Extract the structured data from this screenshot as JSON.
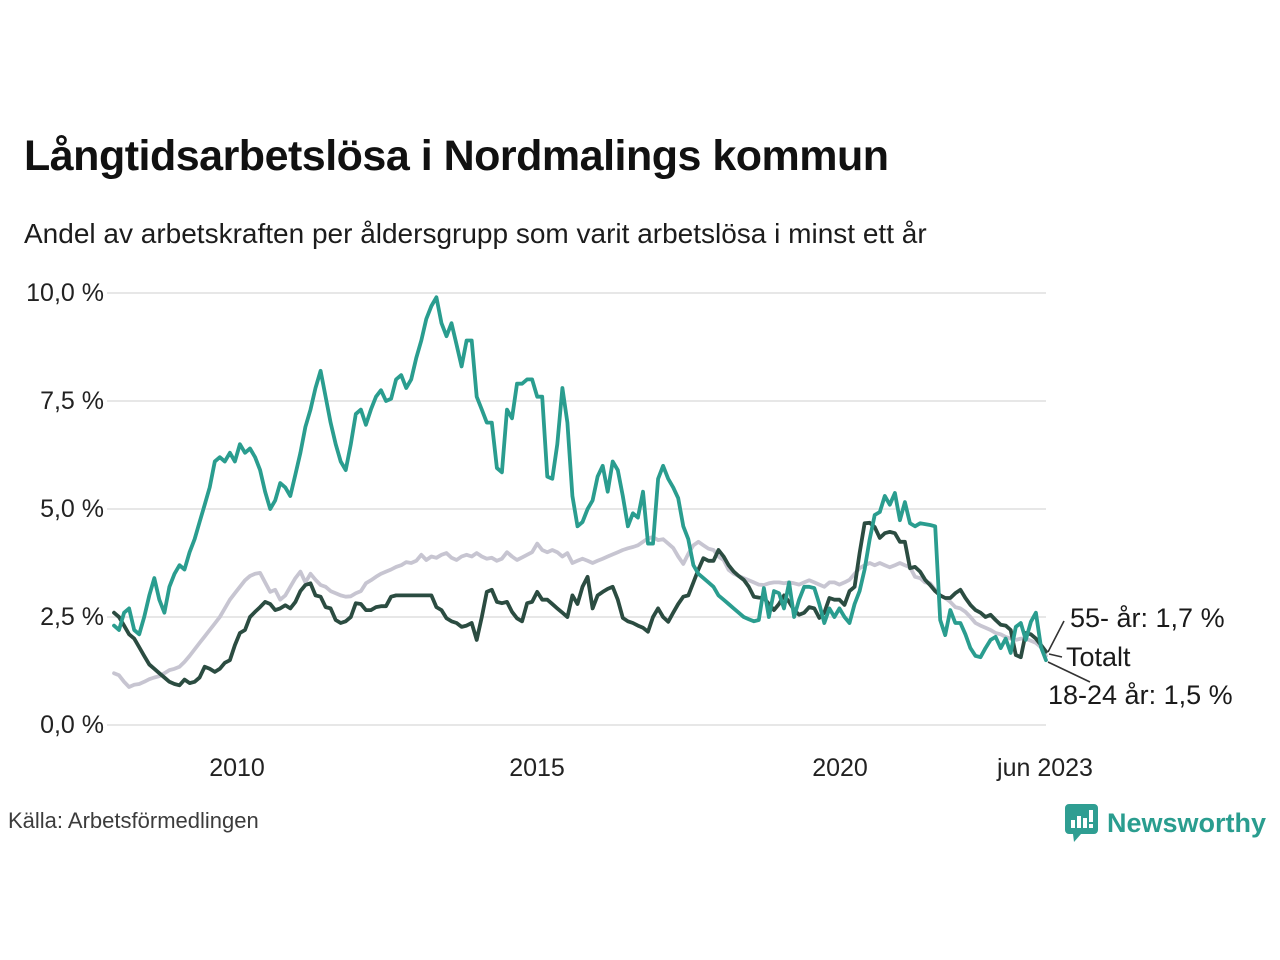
{
  "header": {
    "title": "Långtidsarbetslösa i Nordmalings kommun",
    "subtitle": "Andel av arbetskraften per åldersgrupp som varit arbetslösa i minst ett år"
  },
  "footer": {
    "source": "Källa: Arbetsförmedlingen",
    "logo_text": "Newsworthy",
    "brand_color": "#2a9d8f"
  },
  "chart_data": {
    "type": "line",
    "title": "Långtidsarbetslösa i Nordmalings kommun",
    "subtitle": "Andel av arbetskraften per åldersgrupp som varit arbetslösa i minst ett år",
    "x_unit": "month",
    "x_range": [
      "2008-01",
      "2023-06"
    ],
    "ylim": [
      0,
      10
    ],
    "grid": true,
    "grid_color": "#e7e7e7",
    "yticks": [
      10,
      7.5,
      5,
      2.5,
      0
    ],
    "ytick_labels": [
      "10,0 %",
      "7,5 %",
      "5,0 %",
      "2,5 %",
      "0,0 %"
    ],
    "xticks": [
      "2010-01",
      "2015-01",
      "2020-01",
      "2023-06"
    ],
    "xtick_labels": [
      "2010",
      "2015",
      "2020",
      "jun 2023"
    ],
    "legend_position": "end-of-line-labels",
    "series": [
      {
        "name": "Totalt",
        "color": "#c7c5d1",
        "end_label": "Totalt",
        "values": [
          1.2,
          1.15,
          1.0,
          0.88,
          0.93,
          0.95,
          1.0,
          1.06,
          1.1,
          1.13,
          1.2,
          1.27,
          1.3,
          1.35,
          1.46,
          1.6,
          1.75,
          1.9,
          2.05,
          2.2,
          2.35,
          2.5,
          2.7,
          2.9,
          3.05,
          3.2,
          3.35,
          3.45,
          3.5,
          3.52,
          3.3,
          3.08,
          3.13,
          2.9,
          3.0,
          3.2,
          3.4,
          3.55,
          3.3,
          3.5,
          3.36,
          3.24,
          3.2,
          3.1,
          3.05,
          3.0,
          2.97,
          2.98,
          3.05,
          3.1,
          3.28,
          3.35,
          3.43,
          3.5,
          3.55,
          3.6,
          3.66,
          3.7,
          3.77,
          3.75,
          3.8,
          3.94,
          3.82,
          3.9,
          3.87,
          3.94,
          3.98,
          3.87,
          3.82,
          3.9,
          3.94,
          3.9,
          3.98,
          3.9,
          3.85,
          3.87,
          3.8,
          3.85,
          4.0,
          3.9,
          3.82,
          3.88,
          3.94,
          4.0,
          4.2,
          4.05,
          4.0,
          4.05,
          4.0,
          3.9,
          3.98,
          3.75,
          3.8,
          3.85,
          3.8,
          3.75,
          3.8,
          3.85,
          3.9,
          3.95,
          4.0,
          4.05,
          4.09,
          4.12,
          4.16,
          4.24,
          4.32,
          4.35,
          4.28,
          4.3,
          4.2,
          4.1,
          3.9,
          3.73,
          3.96,
          4.16,
          4.24,
          4.16,
          4.08,
          4.05,
          3.9,
          3.82,
          3.59,
          3.5,
          3.45,
          3.4,
          3.35,
          3.3,
          3.25,
          3.24,
          3.28,
          3.3,
          3.3,
          3.28,
          3.3,
          3.28,
          3.25,
          3.3,
          3.35,
          3.3,
          3.25,
          3.2,
          3.3,
          3.3,
          3.25,
          3.3,
          3.36,
          3.5,
          3.63,
          3.7,
          3.75,
          3.7,
          3.75,
          3.7,
          3.65,
          3.7,
          3.75,
          3.7,
          3.65,
          3.43,
          3.4,
          3.3,
          3.28,
          3.13,
          3.0,
          2.94,
          2.85,
          2.73,
          2.7,
          2.62,
          2.5,
          2.36,
          2.3,
          2.25,
          2.2,
          2.13,
          2.1,
          2.04,
          2.0,
          1.97,
          2.0,
          2.0,
          1.95,
          1.9,
          1.8,
          1.6
        ]
      },
      {
        "name": "55- år",
        "color": "#2b4c41",
        "end_label": "55- år: 1,7 %",
        "end_value": 1.7,
        "values": [
          2.6,
          2.5,
          2.3,
          2.1,
          2.0,
          1.8,
          1.6,
          1.4,
          1.3,
          1.2,
          1.1,
          1.0,
          0.95,
          0.92,
          1.05,
          0.97,
          1.0,
          1.1,
          1.35,
          1.3,
          1.23,
          1.3,
          1.44,
          1.5,
          1.85,
          2.13,
          2.2,
          2.5,
          2.62,
          2.73,
          2.85,
          2.8,
          2.66,
          2.7,
          2.77,
          2.7,
          2.85,
          3.1,
          3.24,
          3.28,
          3.0,
          2.97,
          2.73,
          2.7,
          2.43,
          2.36,
          2.4,
          2.5,
          2.82,
          2.8,
          2.66,
          2.66,
          2.73,
          2.75,
          2.75,
          2.97,
          3.0,
          3.0,
          3.0,
          3.0,
          3.0,
          3.0,
          3.0,
          3.0,
          2.73,
          2.66,
          2.47,
          2.4,
          2.36,
          2.27,
          2.3,
          2.36,
          1.97,
          2.5,
          3.08,
          3.13,
          2.85,
          2.82,
          2.85,
          2.62,
          2.47,
          2.4,
          2.82,
          2.85,
          3.08,
          2.9,
          2.9,
          2.8,
          2.7,
          2.6,
          2.5,
          3.0,
          2.8,
          3.2,
          3.43,
          2.7,
          3.0,
          3.08,
          3.15,
          3.2,
          2.9,
          2.48,
          2.4,
          2.36,
          2.3,
          2.25,
          2.16,
          2.5,
          2.7,
          2.5,
          2.39,
          2.6,
          2.8,
          2.97,
          3.0,
          3.3,
          3.6,
          3.86,
          3.8,
          3.8,
          4.05,
          3.9,
          3.7,
          3.55,
          3.45,
          3.36,
          3.2,
          2.97,
          2.95,
          2.94,
          2.8,
          2.66,
          2.8,
          3.0,
          2.85,
          2.66,
          2.55,
          2.6,
          2.73,
          2.7,
          2.48,
          2.6,
          2.94,
          2.9,
          2.9,
          2.78,
          3.1,
          3.2,
          3.98,
          4.67,
          4.68,
          4.58,
          4.33,
          4.44,
          4.47,
          4.44,
          4.24,
          4.24,
          3.63,
          3.66,
          3.55,
          3.36,
          3.24,
          3.1,
          3.0,
          2.94,
          2.94,
          3.05,
          3.13,
          2.94,
          2.78,
          2.66,
          2.6,
          2.5,
          2.55,
          2.43,
          2.32,
          2.3,
          2.2,
          1.62,
          1.57,
          2.13,
          2.1,
          2.0,
          1.85,
          1.7
        ]
      },
      {
        "name": "18-24 år",
        "color": "#2a9d8f",
        "end_label": "18-24 år: 1,5 %",
        "end_value": 1.5,
        "values": [
          2.3,
          2.2,
          2.6,
          2.7,
          2.2,
          2.1,
          2.5,
          3.0,
          3.4,
          2.9,
          2.6,
          3.2,
          3.5,
          3.7,
          3.6,
          4.0,
          4.3,
          4.7,
          5.1,
          5.5,
          6.1,
          6.2,
          6.1,
          6.3,
          6.1,
          6.5,
          6.3,
          6.4,
          6.2,
          5.9,
          5.4,
          5.0,
          5.2,
          5.6,
          5.5,
          5.3,
          5.8,
          6.3,
          6.9,
          7.3,
          7.8,
          8.2,
          7.6,
          7.0,
          6.5,
          6.1,
          5.9,
          6.5,
          7.2,
          7.3,
          6.95,
          7.3,
          7.6,
          7.75,
          7.5,
          7.55,
          8.0,
          8.1,
          7.8,
          8.0,
          8.5,
          8.9,
          9.4,
          9.7,
          9.9,
          9.3,
          9.0,
          9.3,
          8.8,
          8.3,
          8.9,
          8.9,
          7.6,
          7.3,
          7.0,
          7.0,
          5.95,
          5.85,
          7.3,
          7.1,
          7.9,
          7.9,
          8.0,
          8.0,
          7.6,
          7.6,
          5.75,
          5.7,
          6.5,
          7.8,
          7.0,
          5.3,
          4.6,
          4.7,
          5.0,
          5.2,
          5.75,
          6.0,
          5.4,
          6.1,
          5.9,
          5.3,
          4.6,
          4.9,
          4.8,
          5.4,
          4.2,
          4.2,
          5.7,
          6.0,
          5.7,
          5.5,
          5.25,
          4.6,
          4.3,
          3.7,
          3.5,
          3.4,
          3.3,
          3.2,
          3.0,
          2.9,
          2.8,
          2.7,
          2.6,
          2.5,
          2.45,
          2.4,
          2.43,
          3.17,
          2.5,
          3.1,
          3.05,
          2.7,
          3.3,
          2.5,
          2.9,
          3.2,
          3.2,
          3.17,
          2.8,
          2.36,
          2.7,
          2.5,
          2.7,
          2.5,
          2.36,
          2.8,
          3.1,
          3.6,
          4.3,
          4.86,
          4.93,
          5.3,
          5.1,
          5.37,
          4.74,
          5.16,
          4.67,
          4.6,
          4.67,
          4.65,
          4.63,
          4.6,
          2.43,
          2.08,
          2.66,
          2.36,
          2.36,
          2.1,
          1.78,
          1.6,
          1.57,
          1.78,
          1.97,
          2.04,
          1.78,
          2.0,
          1.67,
          2.27,
          2.36,
          1.97,
          2.39,
          2.6,
          1.8,
          1.5
        ]
      }
    ]
  }
}
